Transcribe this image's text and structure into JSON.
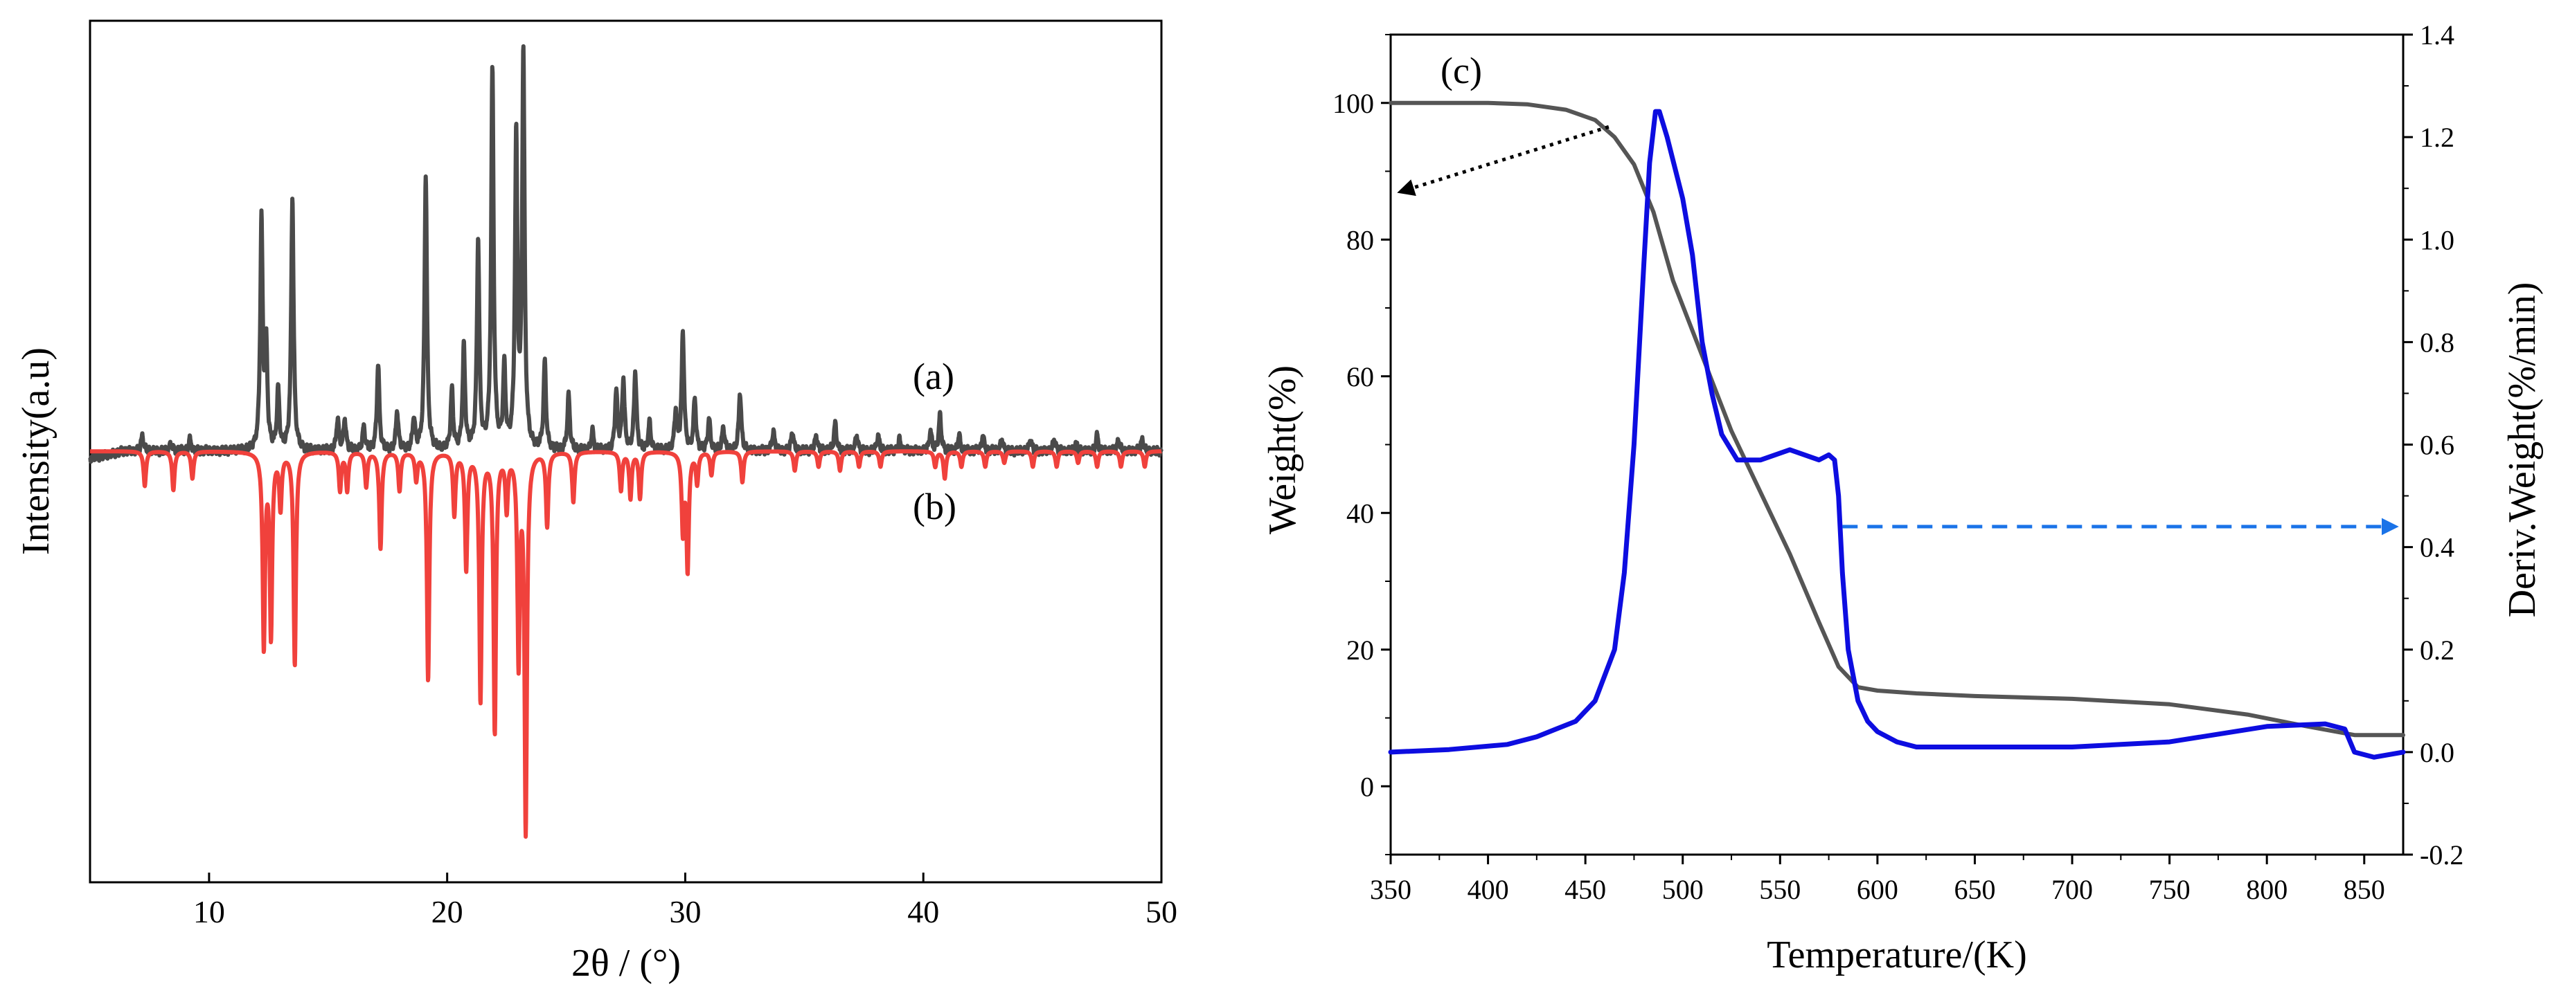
{
  "chart_data": [
    {
      "type": "line",
      "panel": "left",
      "xlabel": "2θ / (°)",
      "ylabel": "Intensity(a.u)",
      "xlim": [
        5,
        50
      ],
      "xticks": [
        10,
        20,
        30,
        40,
        50
      ],
      "yticks": [],
      "annotations": [
        {
          "text": "(a)",
          "x": 40.3,
          "y": 0.18
        },
        {
          "text": "(b)",
          "x": 40.3,
          "y": -0.17
        }
      ],
      "series": [
        {
          "name": "(a)",
          "color": "#4a4a4a",
          "direction": "up",
          "baseline": 0.0,
          "noise": 0.012,
          "peaks": [
            [
              7.2,
              0.04
            ],
            [
              8.4,
              0.02
            ],
            [
              9.2,
              0.03
            ],
            [
              12.2,
              0.58
            ],
            [
              12.4,
              0.25
            ],
            [
              12.9,
              0.15
            ],
            [
              13.5,
              0.64
            ],
            [
              15.4,
              0.08
            ],
            [
              15.7,
              0.08
            ],
            [
              16.5,
              0.06
            ],
            [
              17.1,
              0.22
            ],
            [
              17.9,
              0.1
            ],
            [
              18.6,
              0.08
            ],
            [
              19.1,
              0.7
            ],
            [
              20.2,
              0.15
            ],
            [
              20.7,
              0.26
            ],
            [
              21.3,
              0.53
            ],
            [
              21.9,
              0.96
            ],
            [
              22.4,
              0.2
            ],
            [
              22.9,
              0.78
            ],
            [
              23.2,
              1.0
            ],
            [
              24.1,
              0.22
            ],
            [
              25.1,
              0.14
            ],
            [
              26.1,
              0.05
            ],
            [
              27.1,
              0.15
            ],
            [
              27.4,
              0.18
            ],
            [
              27.9,
              0.2
            ],
            [
              28.5,
              0.07
            ],
            [
              29.6,
              0.1
            ],
            [
              29.9,
              0.3
            ],
            [
              30.4,
              0.13
            ],
            [
              31.0,
              0.08
            ],
            [
              31.6,
              0.06
            ],
            [
              32.3,
              0.15
            ],
            [
              33.7,
              0.05
            ],
            [
              34.5,
              0.05
            ],
            [
              35.5,
              0.04
            ],
            [
              36.3,
              0.07
            ],
            [
              37.2,
              0.04
            ],
            [
              38.1,
              0.04
            ],
            [
              39.0,
              0.03
            ],
            [
              40.3,
              0.05
            ],
            [
              40.7,
              0.09
            ],
            [
              41.5,
              0.04
            ],
            [
              42.5,
              0.04
            ],
            [
              43.3,
              0.03
            ],
            [
              44.5,
              0.03
            ],
            [
              45.5,
              0.03
            ],
            [
              46.4,
              0.02
            ],
            [
              47.3,
              0.04
            ],
            [
              48.2,
              0.03
            ],
            [
              49.2,
              0.03
            ]
          ]
        },
        {
          "name": "(b)",
          "color": "#f0413c",
          "direction": "down",
          "baseline": 0.0,
          "noise": 0.0,
          "peaks": [
            [
              7.3,
              0.09
            ],
            [
              8.5,
              0.1
            ],
            [
              9.3,
              0.07
            ],
            [
              12.3,
              0.5
            ],
            [
              12.6,
              0.47
            ],
            [
              13.0,
              0.14
            ],
            [
              13.6,
              0.55
            ],
            [
              15.5,
              0.1
            ],
            [
              15.8,
              0.1
            ],
            [
              16.6,
              0.09
            ],
            [
              17.2,
              0.25
            ],
            [
              18.0,
              0.1
            ],
            [
              18.7,
              0.07
            ],
            [
              19.2,
              0.59
            ],
            [
              20.3,
              0.16
            ],
            [
              20.8,
              0.3
            ],
            [
              21.4,
              0.64
            ],
            [
              22.0,
              0.72
            ],
            [
              22.5,
              0.14
            ],
            [
              23.0,
              0.53
            ],
            [
              23.3,
              0.97
            ],
            [
              24.2,
              0.19
            ],
            [
              25.3,
              0.13
            ],
            [
              27.3,
              0.1
            ],
            [
              27.7,
              0.12
            ],
            [
              28.1,
              0.12
            ],
            [
              29.9,
              0.2
            ],
            [
              30.1,
              0.3
            ],
            [
              30.5,
              0.08
            ],
            [
              31.1,
              0.06
            ],
            [
              32.4,
              0.08
            ],
            [
              34.6,
              0.05
            ],
            [
              35.6,
              0.04
            ],
            [
              36.5,
              0.05
            ],
            [
              37.3,
              0.04
            ],
            [
              38.2,
              0.04
            ],
            [
              40.5,
              0.04
            ],
            [
              40.9,
              0.07
            ],
            [
              41.6,
              0.04
            ],
            [
              42.6,
              0.04
            ],
            [
              43.4,
              0.03
            ],
            [
              44.6,
              0.04
            ],
            [
              45.6,
              0.04
            ],
            [
              46.5,
              0.03
            ],
            [
              47.3,
              0.04
            ],
            [
              48.3,
              0.04
            ],
            [
              49.3,
              0.04
            ]
          ]
        }
      ]
    },
    {
      "type": "line",
      "panel": "right",
      "title": "(c)",
      "xlabel": "Temperature/(K)",
      "ylabel": "Weight(%)",
      "y2label": "Deriv.Weight(%/min)",
      "xlim": [
        350,
        870
      ],
      "ylim": [
        -10,
        110
      ],
      "y2lim": [
        -0.2,
        1.4
      ],
      "xticks": [
        350,
        400,
        450,
        500,
        550,
        600,
        650,
        700,
        750,
        800,
        850
      ],
      "yticks": [
        0,
        20,
        40,
        60,
        80,
        100
      ],
      "y2ticks": [
        -0.2,
        0.0,
        0.2,
        0.4,
        0.6,
        0.8,
        1.0,
        1.2,
        1.4
      ],
      "y2tick_labels": [
        "-0.2",
        "0.0",
        "0.2",
        "0.4",
        "0.6",
        "0.8",
        "1.0",
        "1.2",
        "1.4"
      ],
      "series": [
        {
          "name": "Weight",
          "axis": "left",
          "color": "#555555",
          "x": [
            350,
            400,
            420,
            440,
            455,
            465,
            475,
            485,
            495,
            510,
            525,
            540,
            555,
            570,
            580,
            590,
            600,
            620,
            650,
            700,
            750,
            790,
            820,
            845,
            870
          ],
          "y": [
            100,
            100,
            99.8,
            99,
            97.5,
            95,
            91,
            84,
            74,
            63,
            52,
            43,
            34,
            24,
            17.5,
            14.5,
            14,
            13.6,
            13.2,
            12.8,
            12,
            10.5,
            8.8,
            7.5,
            7.5
          ]
        },
        {
          "name": "Deriv.Weight",
          "axis": "right",
          "color": "#0d0de0",
          "x": [
            350,
            380,
            410,
            425,
            435,
            445,
            455,
            465,
            470,
            475,
            480,
            483,
            486,
            488,
            492,
            500,
            505,
            510,
            515,
            520,
            528,
            540,
            555,
            570,
            575,
            578,
            580,
            582,
            585,
            590,
            595,
            600,
            610,
            620,
            650,
            700,
            750,
            800,
            830,
            840,
            845,
            855,
            870
          ],
          "y": [
            0.0,
            0.005,
            0.015,
            0.03,
            0.045,
            0.06,
            0.1,
            0.2,
            0.35,
            0.6,
            0.95,
            1.15,
            1.25,
            1.25,
            1.2,
            1.08,
            0.97,
            0.8,
            0.7,
            0.62,
            0.57,
            0.57,
            0.59,
            0.57,
            0.58,
            0.57,
            0.5,
            0.35,
            0.2,
            0.1,
            0.06,
            0.04,
            0.02,
            0.01,
            0.01,
            0.01,
            0.02,
            0.05,
            0.055,
            0.045,
            0.0,
            -0.01,
            0.0
          ]
        }
      ],
      "arrows": [
        {
          "style": "dotted",
          "color": "#000000",
          "from": [
            462,
            96.5
          ],
          "to": [
            355,
            87
          ],
          "axis": "left"
        },
        {
          "style": "dashed",
          "color": "#1a73e8",
          "from": [
            582,
            0.44
          ],
          "to": [
            866,
            0.44
          ],
          "axis": "right"
        }
      ]
    }
  ]
}
